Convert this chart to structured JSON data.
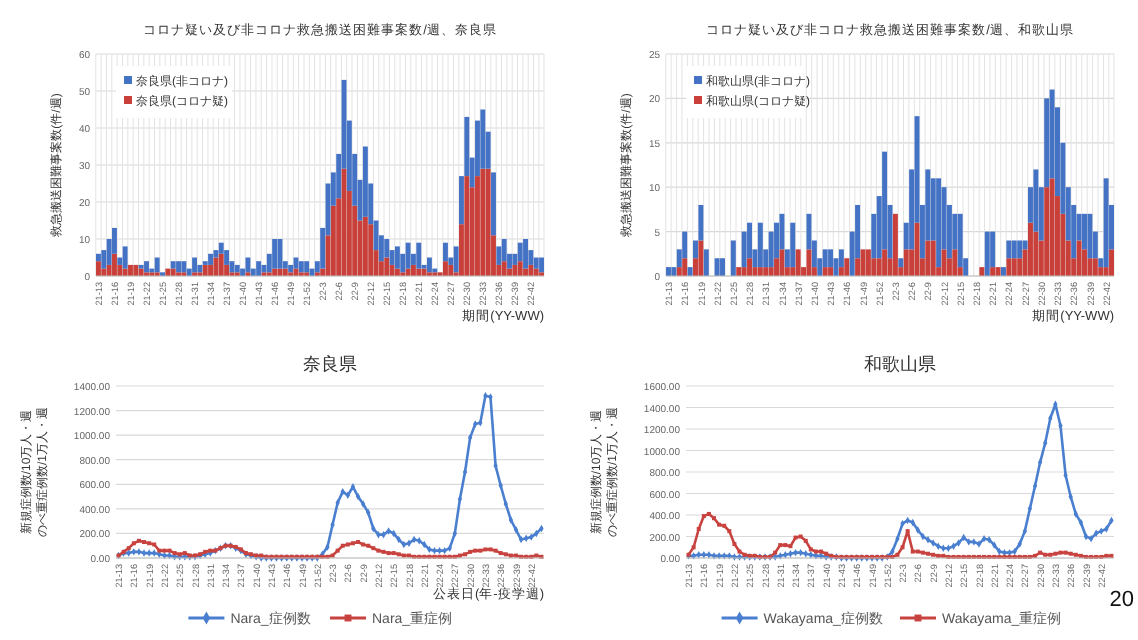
{
  "chart_data": [
    {
      "type": "bar",
      "title": "コロナ疑い及び非コロナ救急搬送困難事案数/週、奈良県",
      "xlabel": "期間(YY-WW)",
      "ylabel": "救急搬送困難事案数(件/週)",
      "stacked": true,
      "grid": true,
      "legend": "top left",
      "ylim": [
        0,
        60
      ],
      "yticks": [
        0,
        10,
        20,
        30,
        40,
        50,
        60
      ],
      "categories": [
        "21-13",
        null,
        null,
        "21-16",
        null,
        null,
        "21-19",
        null,
        null,
        "21-22",
        null,
        null,
        "21-25",
        null,
        null,
        "21-28",
        null,
        null,
        "21-31",
        null,
        null,
        "21-34",
        null,
        null,
        "21-37",
        null,
        null,
        "21-40",
        null,
        null,
        "21-43",
        null,
        null,
        "21-46",
        null,
        null,
        "21-49",
        null,
        null,
        "21-52",
        null,
        null,
        "22-3",
        null,
        null,
        "22-6",
        null,
        null,
        "22-9",
        null,
        null,
        "22-12",
        null,
        null,
        "22-15",
        null,
        null,
        "22-18",
        null,
        null,
        "22-21",
        null,
        null,
        "22-24",
        null,
        null,
        "22-27",
        null,
        null,
        "22-30",
        null,
        null,
        "22-33",
        null,
        null,
        "22-36",
        null,
        null,
        "22-39",
        null,
        null,
        "22-42",
        null,
        null
      ],
      "series": [
        {
          "name": "奈良県(コロナ疑)",
          "color": "#c9403b",
          "values": [
            4,
            2,
            3,
            6,
            3,
            2,
            3,
            3,
            2,
            1,
            1,
            1,
            0,
            2,
            2,
            1,
            1,
            0,
            1,
            1,
            3,
            3,
            5,
            6,
            3,
            1,
            1,
            0,
            1,
            0,
            0,
            1,
            1,
            2,
            2,
            2,
            1,
            2,
            1,
            1,
            0,
            1,
            2,
            11,
            19,
            21,
            29,
            23,
            19,
            15,
            16,
            14,
            7,
            4,
            5,
            3,
            2,
            1,
            2,
            3,
            2,
            2,
            1,
            1,
            1,
            4,
            3,
            1,
            14,
            27,
            24,
            27,
            29,
            29,
            11,
            3,
            4,
            2,
            3,
            4,
            2,
            3,
            2,
            1
          ]
        },
        {
          "name": "奈良県(非コロナ)",
          "color": "#4472c4",
          "values": [
            2,
            5,
            7,
            7,
            2,
            6,
            0,
            0,
            1,
            3,
            1,
            4,
            1,
            0,
            2,
            3,
            3,
            2,
            4,
            2,
            1,
            3,
            2,
            3,
            4,
            3,
            2,
            2,
            4,
            2,
            4,
            2,
            5,
            8,
            8,
            2,
            2,
            3,
            3,
            3,
            2,
            3,
            11,
            14,
            9,
            12,
            24,
            19,
            14,
            11,
            19,
            11,
            8,
            7,
            5,
            4,
            6,
            5,
            7,
            3,
            7,
            1,
            4,
            1,
            0,
            5,
            2,
            7,
            13,
            16,
            8,
            15,
            16,
            10,
            17,
            5,
            6,
            4,
            3,
            5,
            8,
            4,
            3,
            4
          ]
        }
      ]
    },
    {
      "type": "bar",
      "title": "コロナ疑い及び非コロナ救急搬送困難事案数/週、和歌山県",
      "xlabel": "期間(YY-WW)",
      "ylabel": "救急搬送困難事案数(件/週)",
      "stacked": true,
      "grid": true,
      "legend": "top left",
      "ylim": [
        0,
        25
      ],
      "yticks": [
        0,
        5,
        10,
        15,
        20,
        25
      ],
      "categories": [
        "21-13",
        null,
        null,
        "21-16",
        null,
        null,
        "21-19",
        null,
        null,
        "21-22",
        null,
        null,
        "21-25",
        null,
        null,
        "21-28",
        null,
        null,
        "21-31",
        null,
        null,
        "21-34",
        null,
        null,
        "21-37",
        null,
        null,
        "21-40",
        null,
        null,
        "21-43",
        null,
        null,
        "21-46",
        null,
        null,
        "21-49",
        null,
        null,
        "21-52",
        null,
        null,
        "22-3",
        null,
        null,
        "22-6",
        null,
        null,
        "22-9",
        null,
        null,
        "22-12",
        null,
        null,
        "22-15",
        null,
        null,
        "22-18",
        null,
        null,
        "22-21",
        null,
        null,
        "22-24",
        null,
        null,
        "22-27",
        null,
        null,
        "22-30",
        null,
        null,
        "22-33",
        null,
        null,
        "22-36",
        null,
        null,
        "22-39",
        null,
        null,
        "22-42",
        null
      ],
      "series": [
        {
          "name": "和歌山県(コロナ疑)",
          "color": "#c9403b",
          "values": [
            0,
            0,
            1,
            2,
            0,
            2,
            4,
            0,
            0,
            0,
            0,
            0,
            0,
            1,
            1,
            2,
            1,
            1,
            1,
            1,
            2,
            3,
            1,
            1,
            3,
            1,
            3,
            1,
            0,
            1,
            1,
            0,
            1,
            2,
            0,
            2,
            3,
            3,
            2,
            2,
            3,
            2,
            7,
            1,
            3,
            3,
            6,
            2,
            4,
            4,
            1,
            3,
            2,
            3,
            1,
            0,
            0,
            0,
            1,
            0,
            1,
            1,
            0,
            2,
            2,
            2,
            3,
            6,
            5,
            4,
            10,
            11,
            9,
            7,
            4,
            2,
            4,
            3,
            2,
            2,
            1,
            1,
            3
          ]
        },
        {
          "name": "和歌山県(非コロナ)",
          "color": "#4472c4",
          "values": [
            1,
            1,
            2,
            3,
            1,
            2,
            4,
            3,
            0,
            2,
            2,
            0,
            4,
            0,
            4,
            4,
            2,
            5,
            2,
            4,
            4,
            4,
            2,
            5,
            0,
            0,
            4,
            3,
            2,
            2,
            2,
            2,
            2,
            0,
            5,
            6,
            0,
            0,
            5,
            7,
            11,
            6,
            0,
            1,
            3,
            9,
            12,
            6,
            8,
            7,
            10,
            7,
            6,
            4,
            6,
            2,
            0,
            0,
            0,
            5,
            4,
            0,
            1,
            2,
            2,
            2,
            1,
            4,
            7,
            6,
            10,
            10,
            10,
            8,
            6,
            6,
            3,
            4,
            5,
            3,
            1,
            10,
            5
          ]
        }
      ]
    },
    {
      "type": "line",
      "title": "奈良県",
      "xlabel": "公表日(年-疫学週)",
      "ylabel": "新規症例数/10万人・週のべ重症例数/1万人・週",
      "grid": "y",
      "legend": "bottom",
      "ylim": [
        0,
        1400
      ],
      "yticks": [
        {
          "value": 0,
          "label": "0.00"
        },
        {
          "value": 200,
          "label": "200.00"
        },
        {
          "value": 400,
          "label": "400.00"
        },
        {
          "value": 600,
          "label": "600.00"
        },
        {
          "value": 800,
          "label": "800.00"
        },
        {
          "value": 1000,
          "label": "1000.00"
        },
        {
          "value": 1200,
          "label": "1200.00"
        },
        {
          "value": 1400,
          "label": "1400.00"
        }
      ],
      "categories": [
        "21-13",
        null,
        null,
        "21-16",
        null,
        null,
        "21-19",
        null,
        null,
        "21-22",
        null,
        null,
        "21-25",
        null,
        null,
        "21-28",
        null,
        null,
        "21-31",
        null,
        null,
        "21-34",
        null,
        null,
        "21-37",
        null,
        null,
        "21-40",
        null,
        null,
        "21-43",
        null,
        null,
        "21-46",
        null,
        null,
        "21-49",
        null,
        null,
        "21-52",
        null,
        null,
        "22-3",
        null,
        null,
        "22-6",
        null,
        null,
        "22-9",
        null,
        null,
        "22-12",
        null,
        null,
        "22-15",
        null,
        null,
        "22-18",
        null,
        null,
        "22-21",
        null,
        null,
        "22-24",
        null,
        null,
        "22-27",
        null,
        null,
        "22-30",
        null,
        null,
        "22-33",
        null,
        null,
        "22-36",
        null,
        null,
        "22-39",
        null,
        null,
        "22-42",
        null,
        null
      ],
      "series": [
        {
          "name": "Nara_症例数",
          "color": "#4a7fd0",
          "marker": "diamond",
          "values": [
            20,
            40,
            40,
            50,
            50,
            40,
            40,
            40,
            30,
            20,
            20,
            10,
            10,
            10,
            10,
            10,
            20,
            30,
            40,
            60,
            80,
            100,
            100,
            80,
            60,
            30,
            20,
            10,
            0,
            0,
            0,
            0,
            0,
            0,
            0,
            0,
            0,
            0,
            0,
            0,
            30,
            90,
            270,
            450,
            540,
            510,
            580,
            500,
            440,
            370,
            240,
            190,
            190,
            220,
            200,
            150,
            110,
            120,
            150,
            140,
            110,
            70,
            60,
            60,
            60,
            80,
            200,
            480,
            700,
            980,
            1090,
            1100,
            1320,
            1310,
            750,
            590,
            440,
            310,
            230,
            150,
            160,
            170,
            200,
            240
          ]
        },
        {
          "name": "Nara_重症例",
          "color": "#c8433f",
          "marker": "square",
          "values": [
            20,
            50,
            80,
            120,
            140,
            130,
            120,
            110,
            60,
            60,
            60,
            40,
            30,
            40,
            20,
            20,
            30,
            50,
            60,
            60,
            80,
            100,
            100,
            90,
            70,
            40,
            30,
            20,
            20,
            10,
            10,
            10,
            10,
            10,
            10,
            10,
            10,
            10,
            10,
            10,
            10,
            10,
            20,
            60,
            100,
            110,
            120,
            130,
            110,
            100,
            80,
            60,
            50,
            40,
            40,
            30,
            20,
            20,
            10,
            10,
            10,
            10,
            10,
            10,
            10,
            10,
            10,
            20,
            30,
            50,
            60,
            60,
            70,
            70,
            60,
            40,
            30,
            20,
            20,
            10,
            10,
            10,
            20,
            10
          ]
        }
      ]
    },
    {
      "type": "line",
      "title": "和歌山県",
      "ylabel": "新規症例数/10万人・週のべ重症例数/1万人・週",
      "grid": "y",
      "legend": "bottom",
      "ylim": [
        0,
        1600
      ],
      "annotations": [
        "20"
      ],
      "yticks": [
        {
          "value": 0,
          "label": "0.00"
        },
        {
          "value": 200,
          "label": "200.00"
        },
        {
          "value": 400,
          "label": "400.00"
        },
        {
          "value": 600,
          "label": "600.00"
        },
        {
          "value": 800,
          "label": "800.00"
        },
        {
          "value": 1000,
          "label": "1000.00"
        },
        {
          "value": 1200,
          "label": "1200.00"
        },
        {
          "value": 1400,
          "label": "1400.00"
        },
        {
          "value": 1600,
          "label": "1600.00"
        }
      ],
      "categories": [
        "21-13",
        null,
        null,
        "21-16",
        null,
        null,
        "21-19",
        null,
        null,
        "21-22",
        null,
        null,
        "21-25",
        null,
        null,
        "21-28",
        null,
        null,
        "21-31",
        null,
        null,
        "21-34",
        null,
        null,
        "21-37",
        null,
        null,
        "21-40",
        null,
        null,
        "21-43",
        null,
        null,
        "21-46",
        null,
        null,
        "21-49",
        null,
        null,
        "21-52",
        null,
        null,
        "22-3",
        null,
        null,
        "22-6",
        null,
        null,
        "22-9",
        null,
        null,
        "22-12",
        null,
        null,
        "22-15",
        null,
        null,
        "22-18",
        null,
        null,
        "22-21",
        null,
        null,
        "22-24",
        null,
        null,
        "22-27",
        null,
        null,
        "22-30",
        null,
        null,
        "22-33",
        null,
        null,
        "22-36",
        null,
        null,
        "22-39",
        null,
        null,
        "22-42",
        null,
        null
      ],
      "series": [
        {
          "name": "Wakayama_症例数",
          "color": "#4a7fd0",
          "marker": "diamond",
          "values": [
            20,
            20,
            30,
            30,
            30,
            20,
            20,
            20,
            20,
            10,
            10,
            10,
            10,
            10,
            10,
            10,
            10,
            10,
            20,
            30,
            40,
            50,
            50,
            40,
            30,
            20,
            20,
            10,
            10,
            10,
            0,
            0,
            0,
            0,
            0,
            0,
            0,
            0,
            0,
            10,
            60,
            180,
            320,
            350,
            330,
            260,
            200,
            170,
            140,
            110,
            90,
            90,
            110,
            140,
            190,
            150,
            150,
            130,
            180,
            170,
            120,
            60,
            50,
            50,
            60,
            130,
            250,
            460,
            670,
            890,
            1070,
            1300,
            1430,
            1230,
            770,
            570,
            410,
            330,
            200,
            180,
            230,
            250,
            270,
            350
          ]
        },
        {
          "name": "Wakayama_重症例",
          "color": "#c8433f",
          "marker": "square",
          "values": [
            30,
            100,
            270,
            390,
            410,
            370,
            310,
            300,
            250,
            130,
            60,
            30,
            20,
            20,
            10,
            10,
            10,
            50,
            120,
            120,
            110,
            190,
            200,
            160,
            80,
            60,
            60,
            40,
            20,
            10,
            10,
            10,
            10,
            10,
            10,
            10,
            10,
            10,
            10,
            10,
            10,
            30,
            100,
            250,
            60,
            60,
            50,
            40,
            30,
            20,
            20,
            10,
            10,
            10,
            10,
            10,
            10,
            10,
            10,
            10,
            10,
            10,
            10,
            10,
            10,
            10,
            10,
            10,
            20,
            50,
            30,
            30,
            40,
            50,
            50,
            40,
            30,
            20,
            10,
            10,
            10,
            10,
            20,
            20
          ]
        }
      ]
    }
  ]
}
